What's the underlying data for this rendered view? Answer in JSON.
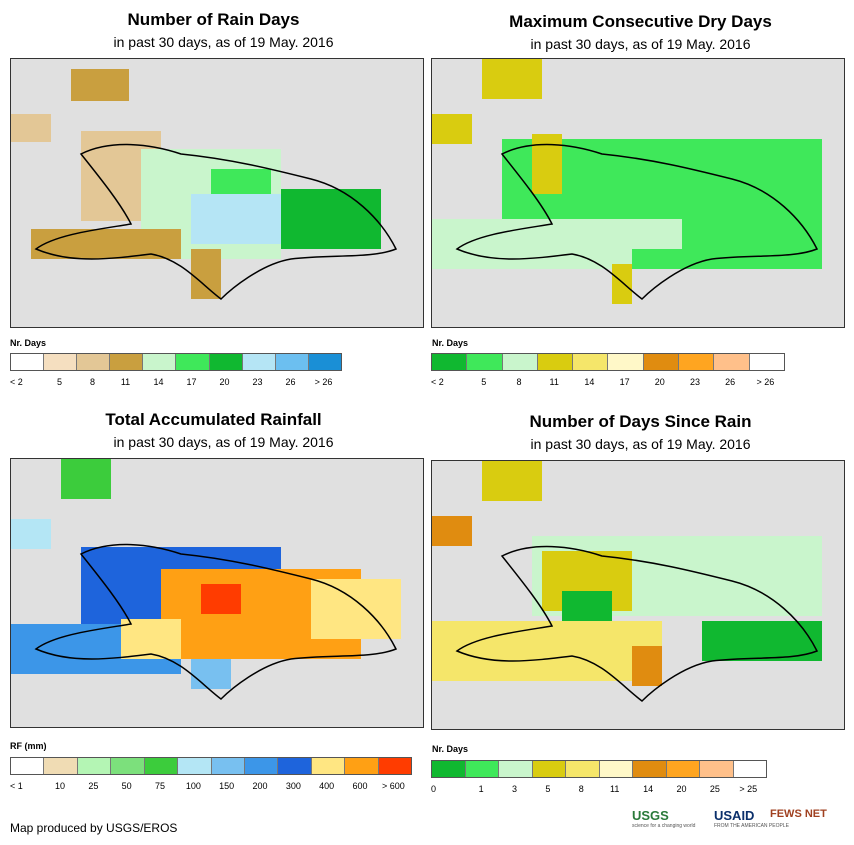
{
  "panels": [
    {
      "id": "rain-days",
      "title": "Number of Rain Days",
      "subtitle": "in past 30 days, as of 19 May. 2016",
      "legend_title": "Nr. Days",
      "legend_labels": [
        "< 2",
        "5",
        "8",
        "11",
        "14",
        "17",
        "20",
        "23",
        "26",
        "> 26"
      ],
      "legend_colors": [
        "#ffffff",
        "#f5dfc0",
        "#e3c796",
        "#c99f3f",
        "#c9f5cc",
        "#3fe85a",
        "#10b830",
        "#b5e5f5",
        "#6cbff0",
        "#1a8fd6"
      ]
    },
    {
      "id": "dry-days",
      "title": "Maximum Consecutive Dry Days",
      "subtitle": "in past 30 days, as of 19 May. 2016",
      "legend_title": "Nr. Days",
      "legend_labels": [
        "< 2",
        "5",
        "8",
        "11",
        "14",
        "17",
        "20",
        "23",
        "26",
        "> 26"
      ],
      "legend_colors": [
        "#10b830",
        "#3fe85a",
        "#c9f5cc",
        "#d9cc10",
        "#f5e66a",
        "#fff8c8",
        "#e08c10",
        "#ffa520",
        "#ffc08a",
        "#ffffff"
      ]
    },
    {
      "id": "rainfall",
      "title": "Total Accumulated Rainfall",
      "subtitle": "in past 30 days, as of 19 May. 2016",
      "legend_title": "RF (mm)",
      "legend_labels": [
        "< 1",
        "10",
        "25",
        "50",
        "75",
        "100",
        "150",
        "200",
        "300",
        "400",
        "600",
        "> 600"
      ],
      "legend_colors": [
        "#ffffff",
        "#f0dcb4",
        "#b4f5b4",
        "#7ce07c",
        "#3ccc3c",
        "#b4e6f5",
        "#78c0f0",
        "#3c96e8",
        "#1e64dc",
        "#ffe682",
        "#ffa014",
        "#ff3c00"
      ]
    },
    {
      "id": "since-rain",
      "title": "Number of Days Since Rain",
      "subtitle": "in past 30 days, as of 19 May. 2016",
      "legend_title": "Nr. Days",
      "legend_labels": [
        "0",
        "1",
        "3",
        "5",
        "8",
        "11",
        "14",
        "20",
        "25",
        "> 25"
      ],
      "legend_colors": [
        "#10b830",
        "#3fe85a",
        "#c9f5cc",
        "#d9cc10",
        "#f5e66a",
        "#fff8c8",
        "#e08c10",
        "#ffa520",
        "#ffc08a",
        "#ffffff"
      ]
    }
  ],
  "footer": "Map produced by USGS/EROS",
  "logos": {
    "usgs": "USGS",
    "usgs_tag": "science for a changing world",
    "usaid": "USAID",
    "usaid_tag": "FROM THE AMERICAN PEOPLE",
    "fews": "FEWS NET"
  }
}
